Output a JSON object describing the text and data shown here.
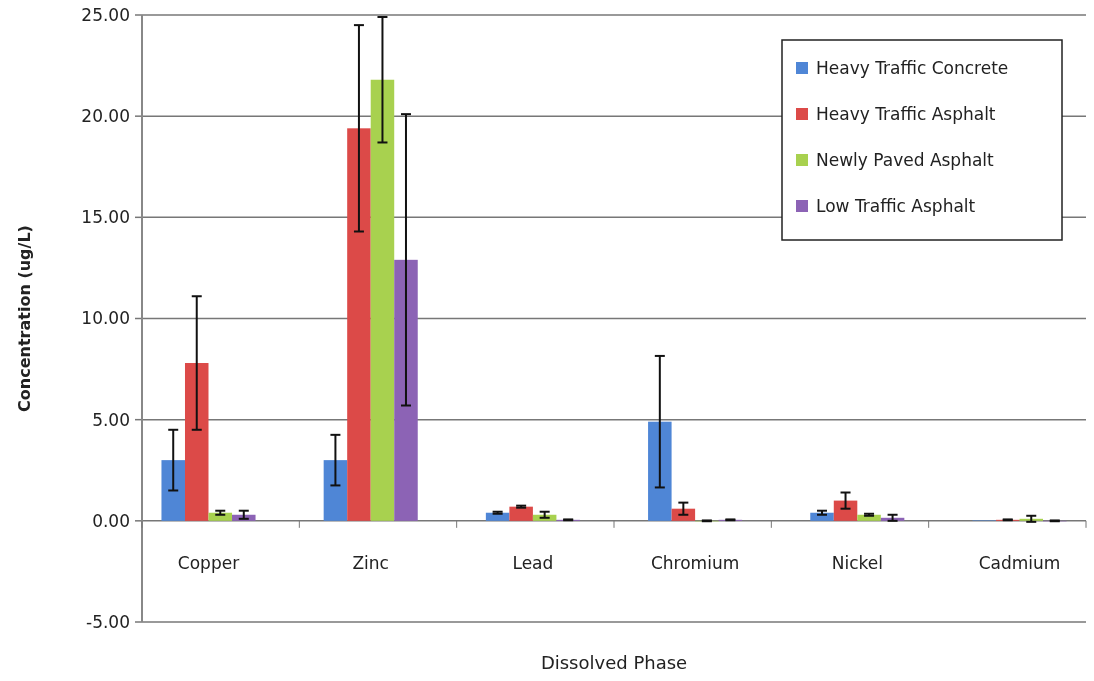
{
  "chart_data": {
    "type": "bar",
    "xlabel": "Dissolved Phase",
    "ylabel": "Concentration (ug/L)",
    "categories": [
      "Copper",
      "Zinc",
      "Lead",
      "Chromium",
      "Nickel",
      "Cadmium"
    ],
    "series": [
      {
        "name": "Heavy Traffic Concrete",
        "color": "#4f86d6",
        "values": [
          3.0,
          3.0,
          0.4,
          4.9,
          0.4,
          0.02
        ],
        "errors": [
          1.5,
          1.25,
          0.05,
          3.25,
          0.1,
          null
        ]
      },
      {
        "name": "Heavy Traffic Asphalt",
        "color": "#dc4a48",
        "values": [
          7.8,
          19.4,
          0.7,
          0.6,
          1.0,
          0.05
        ],
        "errors": [
          3.3,
          5.1,
          0.05,
          0.3,
          0.4,
          0.02
        ]
      },
      {
        "name": "Newly Paved Asphalt",
        "color": "#a8d14f",
        "values": [
          0.4,
          21.8,
          0.3,
          0.0,
          0.3,
          0.1
        ],
        "errors": [
          0.1,
          3.1,
          0.15,
          0.02,
          0.05,
          0.15
        ]
      },
      {
        "name": "Low Traffic Asphalt",
        "color": "#8c63b5",
        "values": [
          0.3,
          12.9,
          0.05,
          0.05,
          0.15,
          0.0
        ],
        "errors": [
          0.2,
          7.2,
          0.02,
          0.02,
          0.15,
          0.02
        ]
      }
    ],
    "ylim": [
      -5,
      25
    ],
    "yticks": [
      {
        "value": -5,
        "label": "-5.00"
      },
      {
        "value": 0,
        "label": "0.00"
      },
      {
        "value": 5,
        "label": "5.00"
      },
      {
        "value": 10,
        "label": "10.00"
      },
      {
        "value": 15,
        "label": "15.00"
      },
      {
        "value": 20,
        "label": "20.00"
      },
      {
        "value": 25,
        "label": "25.00"
      }
    ],
    "grid": "y",
    "legend": "top right"
  }
}
